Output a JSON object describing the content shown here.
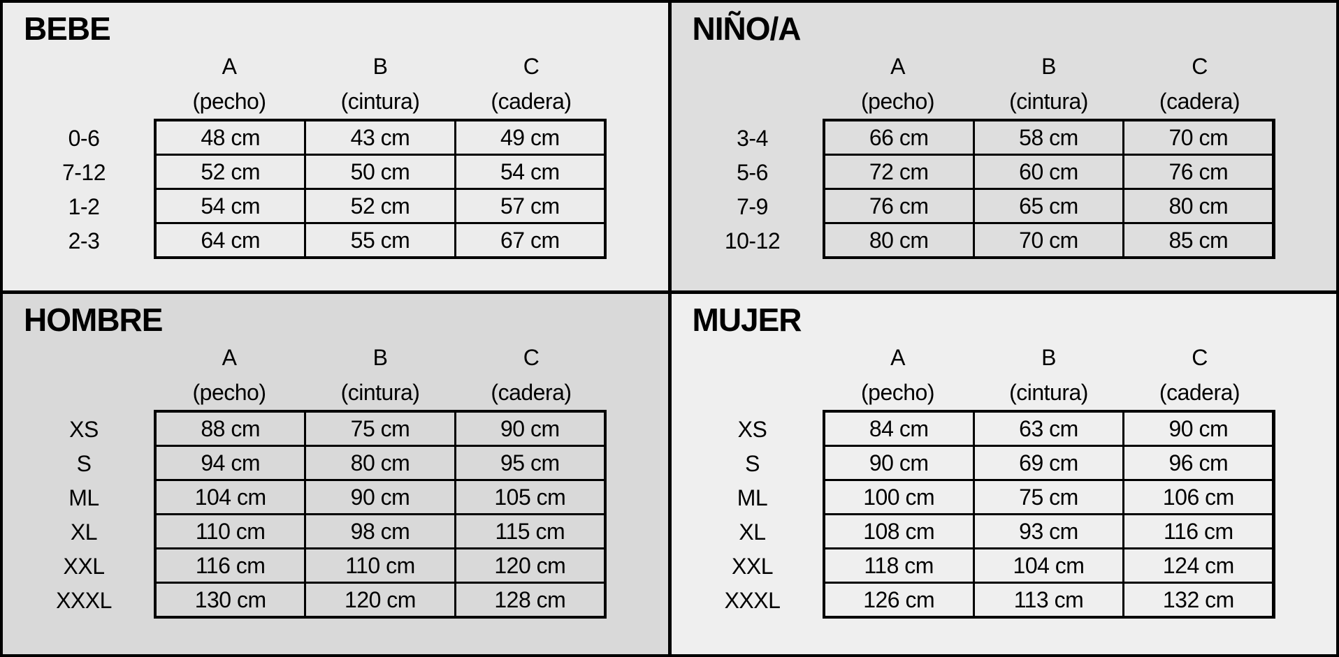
{
  "page": {
    "border_color": "#000000",
    "text_color": "#000000"
  },
  "chart_data": [
    {
      "type": "table",
      "title": "BEBE",
      "background": "#ececec",
      "unit": "cm",
      "columns": [
        {
          "letter": "A",
          "sublabel": "(pecho)"
        },
        {
          "letter": "B",
          "sublabel": "(cintura)"
        },
        {
          "letter": "C",
          "sublabel": "(cadera)"
        }
      ],
      "rows": [
        {
          "label": "0-6",
          "values_cm": [
            48,
            43,
            49
          ],
          "display": [
            "48 cm",
            "43 cm",
            "49 cm"
          ]
        },
        {
          "label": "7-12",
          "values_cm": [
            52,
            50,
            54
          ],
          "display": [
            "52 cm",
            "50 cm",
            "54 cm"
          ]
        },
        {
          "label": "1-2",
          "values_cm": [
            54,
            52,
            57
          ],
          "display": [
            "54 cm",
            "52 cm",
            "57 cm"
          ]
        },
        {
          "label": "2-3",
          "values_cm": [
            64,
            55,
            67
          ],
          "display": [
            "64 cm",
            "55 cm",
            "67 cm"
          ]
        }
      ]
    },
    {
      "type": "table",
      "title": "NIÑO/A",
      "background": "#dedede",
      "unit": "cm",
      "columns": [
        {
          "letter": "A",
          "sublabel": "(pecho)"
        },
        {
          "letter": "B",
          "sublabel": "(cintura)"
        },
        {
          "letter": "C",
          "sublabel": "(cadera)"
        }
      ],
      "rows": [
        {
          "label": "3-4",
          "values_cm": [
            66,
            58,
            70
          ],
          "display": [
            "66 cm",
            "58 cm",
            "70 cm"
          ]
        },
        {
          "label": "5-6",
          "values_cm": [
            72,
            60,
            76
          ],
          "display": [
            "72 cm",
            "60 cm",
            "76 cm"
          ]
        },
        {
          "label": "7-9",
          "values_cm": [
            76,
            65,
            80
          ],
          "display": [
            "76 cm",
            "65 cm",
            "80 cm"
          ]
        },
        {
          "label": "10-12",
          "values_cm": [
            80,
            70,
            85
          ],
          "display": [
            "80 cm",
            "70 cm",
            "85 cm"
          ]
        }
      ]
    },
    {
      "type": "table",
      "title": "HOMBRE",
      "background": "#d9d9d9",
      "unit": "cm",
      "columns": [
        {
          "letter": "A",
          "sublabel": "(pecho)"
        },
        {
          "letter": "B",
          "sublabel": "(cintura)"
        },
        {
          "letter": "C",
          "sublabel": "(cadera)"
        }
      ],
      "rows": [
        {
          "label": "XS",
          "values_cm": [
            88,
            75,
            90
          ],
          "display": [
            "88 cm",
            "75 cm",
            "90 cm"
          ]
        },
        {
          "label": "S",
          "values_cm": [
            94,
            80,
            95
          ],
          "display": [
            "94 cm",
            "80 cm",
            "95 cm"
          ]
        },
        {
          "label": "ML",
          "values_cm": [
            104,
            90,
            105
          ],
          "display": [
            "104 cm",
            "90 cm",
            "105 cm"
          ]
        },
        {
          "label": "XL",
          "values_cm": [
            110,
            98,
            115
          ],
          "display": [
            "110 cm",
            "98 cm",
            "115 cm"
          ]
        },
        {
          "label": "XXL",
          "values_cm": [
            116,
            110,
            120
          ],
          "display": [
            "116 cm",
            "110 cm",
            "120 cm"
          ]
        },
        {
          "label": "XXXL",
          "values_cm": [
            130,
            120,
            128
          ],
          "display": [
            "130 cm",
            "120 cm",
            "128 cm"
          ]
        }
      ]
    },
    {
      "type": "table",
      "title": "MUJER",
      "background": "#efefef",
      "unit": "cm",
      "columns": [
        {
          "letter": "A",
          "sublabel": "(pecho)"
        },
        {
          "letter": "B",
          "sublabel": "(cintura)"
        },
        {
          "letter": "C",
          "sublabel": "(cadera)"
        }
      ],
      "rows": [
        {
          "label": "XS",
          "values_cm": [
            84,
            63,
            90
          ],
          "display": [
            "84 cm",
            "63 cm",
            "90 cm"
          ]
        },
        {
          "label": "S",
          "values_cm": [
            90,
            69,
            96
          ],
          "display": [
            "90 cm",
            "69 cm",
            "96 cm"
          ]
        },
        {
          "label": "ML",
          "values_cm": [
            100,
            75,
            106
          ],
          "display": [
            "100 cm",
            "75 cm",
            "106 cm"
          ]
        },
        {
          "label": "XL",
          "values_cm": [
            108,
            93,
            116
          ],
          "display": [
            "108 cm",
            "93 cm",
            "116 cm"
          ]
        },
        {
          "label": "XXL",
          "values_cm": [
            118,
            104,
            124
          ],
          "display": [
            "118 cm",
            "104 cm",
            "124 cm"
          ]
        },
        {
          "label": "XXXL",
          "values_cm": [
            126,
            113,
            132
          ],
          "display": [
            "126 cm",
            "113 cm",
            "132 cm"
          ]
        }
      ]
    }
  ]
}
